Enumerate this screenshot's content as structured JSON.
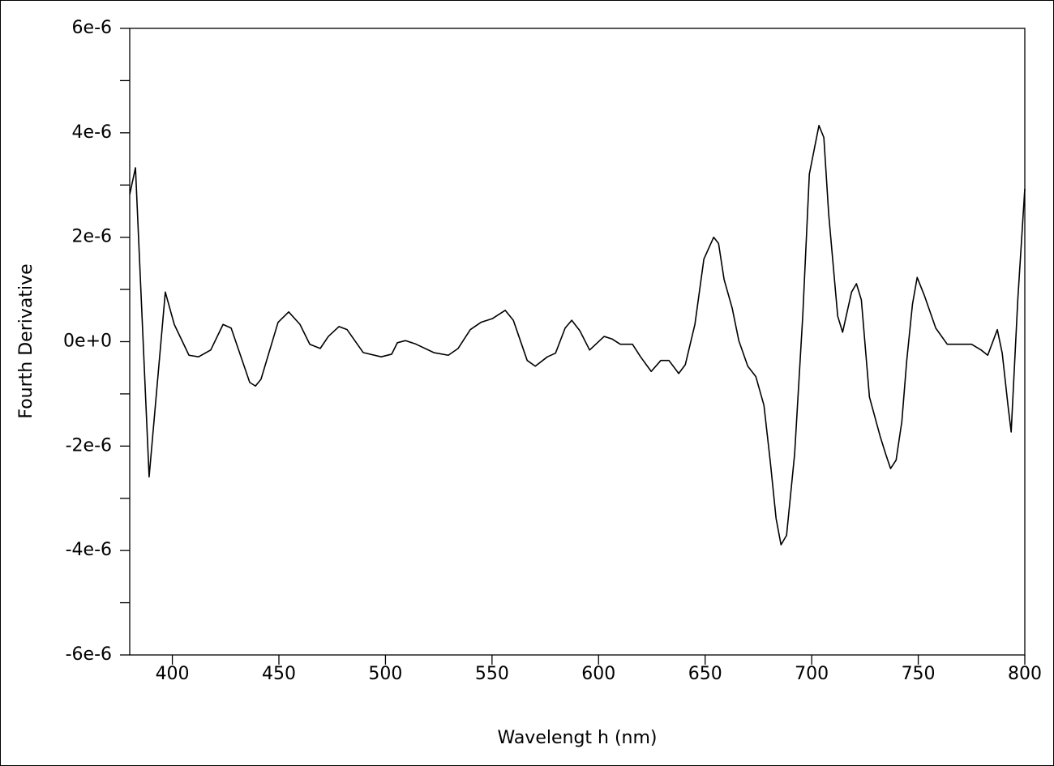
{
  "chart_data": {
    "type": "line",
    "xlabel": "Wavelengt h (nm)",
    "ylabel": "Fourth Derivative",
    "color": "#000000",
    "x": [
      380,
      382.7,
      389.1,
      396.7,
      400.9,
      407.8,
      412.3,
      418,
      423.8,
      427.6,
      436.3,
      439,
      441.6,
      449.6,
      454.6,
      459.9,
      464.5,
      469.4,
      473.2,
      478.2,
      482,
      489.6,
      498,
      502.9,
      505.6,
      509.4,
      513.9,
      522.7,
      529.5,
      534.1,
      539.8,
      544.8,
      550.1,
      556.2,
      560,
      566.5,
      570.3,
      576,
      579.8,
      584.3,
      587.4,
      591.2,
      595.8,
      602.6,
      606.4,
      610.2,
      615.9,
      619.7,
      624.7,
      629.2,
      633,
      637.6,
      640.7,
      645.2,
      649.4,
      654,
      656.3,
      658.9,
      662.7,
      665.8,
      670,
      673.8,
      677.6,
      680.6,
      683.3,
      685.6,
      688.2,
      692,
      695.8,
      698.9,
      703.4,
      705.7,
      708,
      712.2,
      714.5,
      718.7,
      721,
      723.3,
      727.1,
      732.1,
      734.7,
      737,
      739.6,
      742.3,
      744.6,
      747.3,
      749.5,
      753,
      758.2,
      763.6,
      768.1,
      775,
      779.5,
      782.6,
      787.1,
      789.4,
      792.1,
      793.6,
      796.7,
      800
    ],
    "values": [
      2.82e-06,
      3.33e-06,
      -2.59e-06,
      9.5e-07,
      3.3e-07,
      -2.6e-07,
      -2.9e-07,
      -1.6e-07,
      3.3e-07,
      2.6e-07,
      -7.8e-07,
      -8.5e-07,
      -7.2e-07,
      3.7e-07,
      5.7e-07,
      3.3e-07,
      -5e-08,
      -1.3e-07,
      1e-07,
      2.9e-07,
      2.3e-07,
      -2.1e-07,
      -2.9e-07,
      -2.4e-07,
      -2e-08,
      2e-08,
      -4e-08,
      -2.1e-07,
      -2.6e-07,
      -1.3e-07,
      2.3e-07,
      3.7e-07,
      4.4e-07,
      6e-07,
      4.1e-07,
      -3.6e-07,
      -4.7e-07,
      -2.9e-07,
      -2.2e-07,
      2.6e-07,
      4.1e-07,
      2.1e-07,
      -1.6e-07,
      1e-07,
      5e-08,
      -5e-08,
      -5e-08,
      -2.9e-07,
      -5.7e-07,
      -3.6e-07,
      -3.6e-07,
      -6.1e-07,
      -4.4e-07,
      3.3e-07,
      1.58e-06,
      2e-06,
      1.88e-06,
      1.19e-06,
      6.4e-07,
      2e-08,
      -4.7e-07,
      -6.7e-07,
      -1.22e-06,
      -2.31e-06,
      -3.39e-06,
      -3.89e-06,
      -3.71e-06,
      -2.15e-06,
      4.9e-07,
      3.21e-06,
      4.14e-06,
      3.91e-06,
      2.43e-06,
      4.9e-07,
      1.8e-07,
      9.5e-07,
      1.11e-06,
      8e-07,
      -1.06e-06,
      -1.81e-06,
      -2.15e-06,
      -2.43e-06,
      -2.27e-06,
      -1.53e-06,
      -3.6e-07,
      7.2e-07,
      1.23e-06,
      8.7e-07,
      2.6e-07,
      -5e-08,
      -5e-08,
      -5e-08,
      -1.6e-07,
      -2.6e-07,
      2.3e-07,
      -2.2e-07,
      -1.22e-06,
      -1.73e-06,
      8e-07,
      2.93e-06
    ],
    "xlim": [
      380,
      800
    ],
    "xticks": [
      400,
      450,
      500,
      550,
      600,
      650,
      700,
      750,
      800
    ],
    "ylim": [
      -6e-06,
      6e-06
    ],
    "yticks": [
      {
        "value": 6e-06,
        "label": "6e-6"
      },
      {
        "value": 4e-06,
        "label": "4e-6"
      },
      {
        "value": 2e-06,
        "label": "2e-6"
      },
      {
        "value": 0,
        "label": "0e+0"
      },
      {
        "value": -2e-06,
        "label": "-2e-6"
      },
      {
        "value": -4e-06,
        "label": "-4e-6"
      },
      {
        "value": -6e-06,
        "label": "-6e-6"
      }
    ],
    "yminorticks": [
      5e-06,
      3e-06,
      1e-06,
      -1e-06,
      -3e-06,
      -5e-06
    ],
    "grid": false
  }
}
